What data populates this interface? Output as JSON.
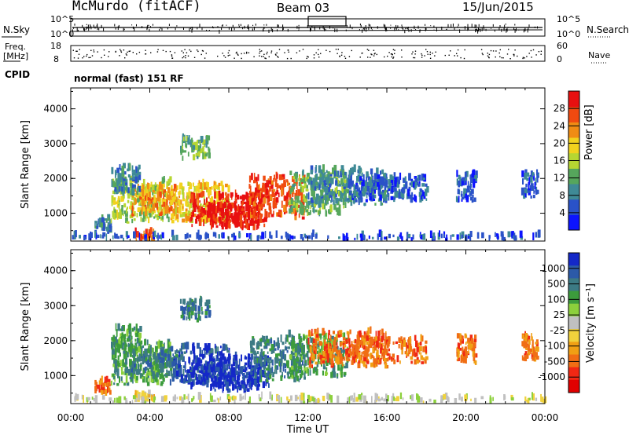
{
  "header": {
    "station": "McMurdo (fitACF)",
    "beam": "Beam 03",
    "date": "15/Jun/2015"
  },
  "status_panel": {
    "nsky_label": "N.Sky",
    "nsky_ticks": [
      "10^5",
      "10^0"
    ],
    "nsearch_label": "N.Search",
    "nsearch_ticks": [
      "10^5",
      "10^0"
    ],
    "freq_label_top": "Freq.",
    "freq_label_unit": "[MHz]",
    "freq_ticks": [
      "18",
      "8"
    ],
    "nave_label": "Nave",
    "nave_ticks": [
      "60",
      "0"
    ],
    "cpid_label": "CPID",
    "cpid_value": "normal (fast) 151 RF"
  },
  "chart_data": [
    {
      "type": "heatmap",
      "name": "power",
      "ylabel": "Slant Range [km]",
      "ylim": [
        200,
        4600
      ],
      "yticks": [
        "1000",
        "2000",
        "3000",
        "4000"
      ],
      "xlim": [
        0,
        24
      ],
      "colorbar": {
        "label": "Power [dB]",
        "ticks": [
          "4",
          "8",
          "12",
          "16",
          "20",
          "24",
          "28"
        ],
        "colors": [
          "#0c14ff",
          "#2a52c8",
          "#3f8a96",
          "#56a65c",
          "#b6d632",
          "#f2d21e",
          "#f08c14",
          "#f04a10",
          "#e81010"
        ]
      },
      "regions": [
        {
          "x0": 1.2,
          "x1": 2.0,
          "y0": 400,
          "y1": 800,
          "c": 2
        },
        {
          "x0": 2.0,
          "x1": 5.0,
          "y0": 700,
          "y1": 1900,
          "c": 4
        },
        {
          "x0": 3.0,
          "x1": 5.5,
          "y0": 900,
          "y1": 1700,
          "c": 6
        },
        {
          "x0": 5.0,
          "x1": 8.0,
          "y0": 700,
          "y1": 1800,
          "c": 5
        },
        {
          "x0": 6.0,
          "x1": 10.0,
          "y0": 600,
          "y1": 1500,
          "c": 8
        },
        {
          "x0": 7.0,
          "x1": 9.5,
          "y0": 500,
          "y1": 1200,
          "c": 8
        },
        {
          "x0": 9.0,
          "x1": 11.8,
          "y0": 800,
          "y1": 2000,
          "c": 7
        },
        {
          "x0": 11.0,
          "x1": 14.0,
          "y0": 900,
          "y1": 2100,
          "c": 3
        },
        {
          "x0": 12.0,
          "x1": 16.0,
          "y0": 1200,
          "y1": 2200,
          "c": 2
        },
        {
          "x0": 14.0,
          "x1": 18.0,
          "y0": 1300,
          "y1": 2000,
          "c": 1
        },
        {
          "x0": 5.5,
          "x1": 7.0,
          "y0": 2500,
          "y1": 3100,
          "c": 3
        },
        {
          "x0": 2.0,
          "x1": 3.5,
          "y0": 1500,
          "y1": 2300,
          "c": 2
        },
        {
          "x0": 3.2,
          "x1": 4.2,
          "y0": 200,
          "y1": 400,
          "c": 7
        },
        {
          "x0": 19.5,
          "x1": 20.5,
          "y0": 1300,
          "y1": 2100,
          "c": 1
        },
        {
          "x0": 22.8,
          "x1": 23.6,
          "y0": 1400,
          "y1": 2100,
          "c": 1
        },
        {
          "x0": 0.0,
          "x1": 24.0,
          "y0": 200,
          "y1": 330,
          "c": 1
        }
      ]
    },
    {
      "type": "heatmap",
      "name": "velocity",
      "ylabel": "Slant Range [km]",
      "xlabel": "Time UT",
      "ylim": [
        200,
        4600
      ],
      "yticks": [
        "1000",
        "2000",
        "3000",
        "4000"
      ],
      "xlim": [
        0,
        24
      ],
      "xticks": [
        "00:00",
        "04:00",
        "08:00",
        "12:00",
        "16:00",
        "20:00",
        "00:00"
      ],
      "colorbar": {
        "label": "Velocity [m s⁻¹]",
        "ticks": [
          "1000",
          "500",
          "100",
          "25",
          "-25",
          "-100",
          "-500",
          "-1000"
        ],
        "colors": [
          "#1428c8",
          "#2c5aa8",
          "#3c7a84",
          "#3c9c3c",
          "#8cd03c",
          "#c0c0c0",
          "#f0d23c",
          "#f0a014",
          "#f06e14",
          "#f02814",
          "#e00000"
        ]
      },
      "regions": [
        {
          "x0": 1.2,
          "x1": 2.0,
          "y0": 400,
          "y1": 800,
          "c": 8
        },
        {
          "x0": 2.0,
          "x1": 5.0,
          "y0": 700,
          "y1": 1900,
          "c": 3
        },
        {
          "x0": 3.0,
          "x1": 5.5,
          "y0": 900,
          "y1": 1700,
          "c": 2
        },
        {
          "x0": 5.0,
          "x1": 8.0,
          "y0": 700,
          "y1": 1800,
          "c": 1
        },
        {
          "x0": 6.0,
          "x1": 10.0,
          "y0": 600,
          "y1": 1500,
          "c": 0
        },
        {
          "x0": 7.0,
          "x1": 9.5,
          "y0": 500,
          "y1": 1200,
          "c": 0
        },
        {
          "x0": 9.0,
          "x1": 11.8,
          "y0": 800,
          "y1": 2000,
          "c": 2
        },
        {
          "x0": 11.0,
          "x1": 14.0,
          "y0": 900,
          "y1": 2100,
          "c": 3
        },
        {
          "x0": 12.0,
          "x1": 16.0,
          "y0": 1200,
          "y1": 2200,
          "c": 8
        },
        {
          "x0": 14.0,
          "x1": 18.0,
          "y0": 1300,
          "y1": 2000,
          "c": 8
        },
        {
          "x0": 5.5,
          "x1": 7.0,
          "y0": 2500,
          "y1": 3100,
          "c": 2
        },
        {
          "x0": 2.0,
          "x1": 3.5,
          "y0": 1500,
          "y1": 2300,
          "c": 3
        },
        {
          "x0": 3.2,
          "x1": 4.2,
          "y0": 200,
          "y1": 400,
          "c": 6
        },
        {
          "x0": 19.5,
          "x1": 20.5,
          "y0": 1300,
          "y1": 2100,
          "c": 8
        },
        {
          "x0": 22.8,
          "x1": 23.6,
          "y0": 1400,
          "y1": 2100,
          "c": 8
        },
        {
          "x0": 0.0,
          "x1": 24.0,
          "y0": 200,
          "y1": 330,
          "c": 5
        }
      ]
    }
  ]
}
